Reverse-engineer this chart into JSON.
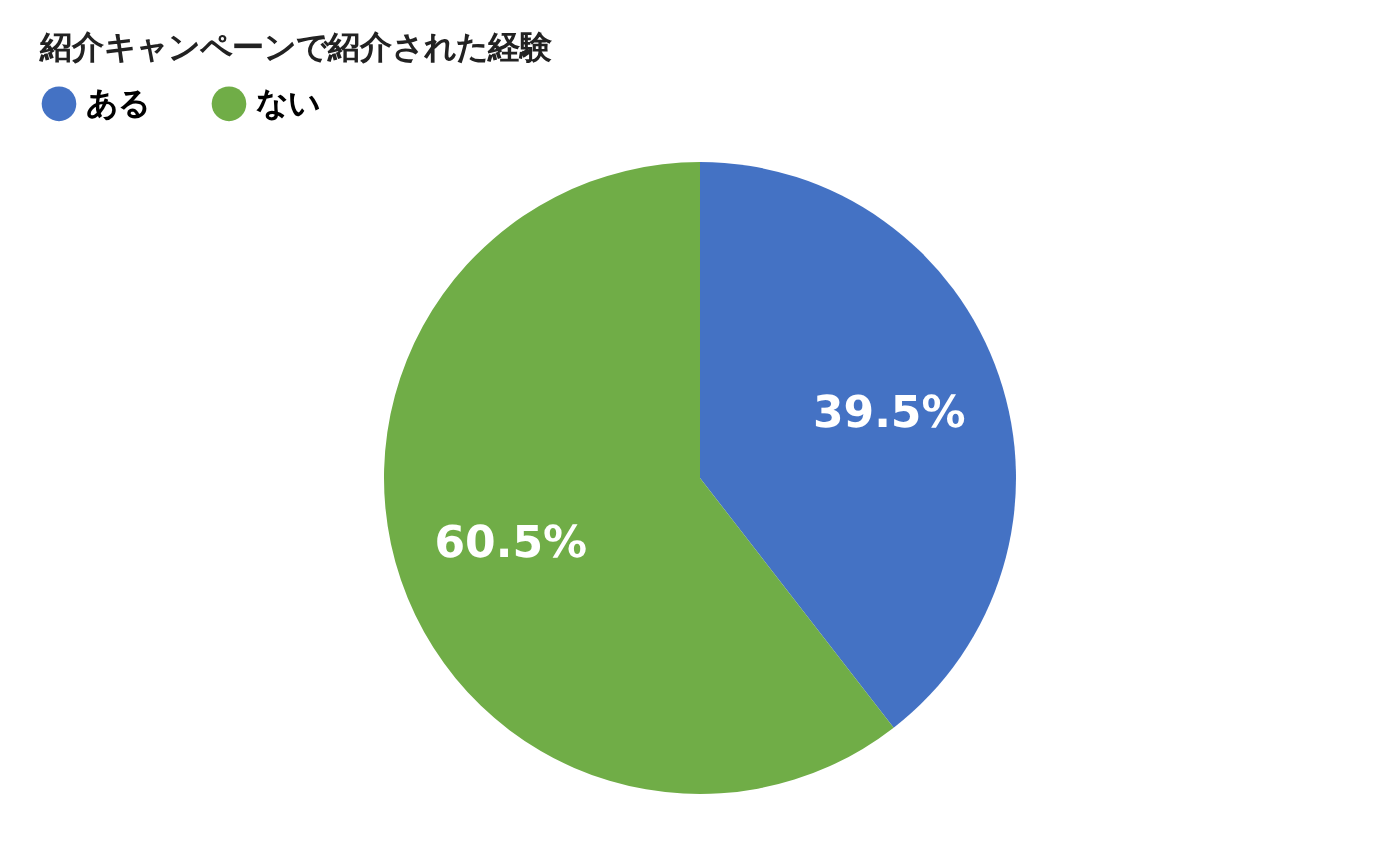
{
  "chart_data": {
    "type": "pie",
    "title": "紹介キャンペーンで紹介された経験",
    "categories": [
      "ある",
      "ない"
    ],
    "values": [
      39.5,
      60.5
    ],
    "colors": [
      "#4472c4",
      "#70ad47"
    ],
    "value_labels": [
      "39.5%",
      "60.5%"
    ],
    "legend": "top"
  }
}
